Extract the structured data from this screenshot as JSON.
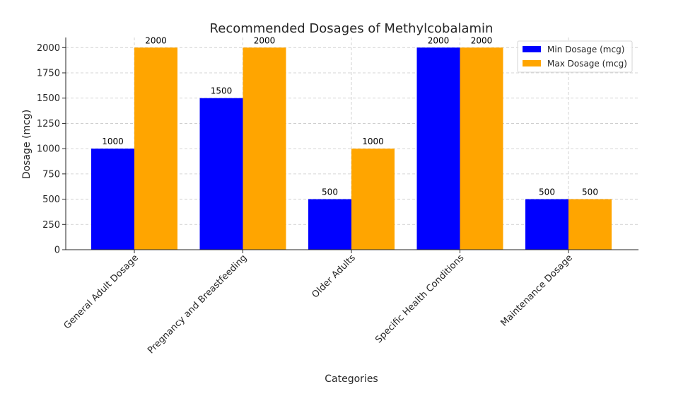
{
  "chart_data": {
    "type": "bar",
    "title": "Recommended Dosages of Methylcobalamin",
    "xlabel": "Categories",
    "ylabel": "Dosage (mcg)",
    "ylim": [
      0,
      2100
    ],
    "yticks": [
      0,
      250,
      500,
      750,
      1000,
      1250,
      1500,
      1750,
      2000
    ],
    "grid": true,
    "legend_position": "top-right",
    "categories": [
      "General Adult Dosage",
      "Pregnancy and Breastfeeding",
      "Older Adults",
      "Specific Health Conditions",
      "Maintenance Dosage"
    ],
    "series": [
      {
        "name": "Min Dosage (mcg)",
        "color": "#0000ff",
        "values": [
          1000,
          1500,
          500,
          2000,
          500
        ]
      },
      {
        "name": "Max Dosage (mcg)",
        "color": "#ffa500",
        "values": [
          2000,
          2000,
          1000,
          2000,
          500
        ]
      }
    ]
  }
}
